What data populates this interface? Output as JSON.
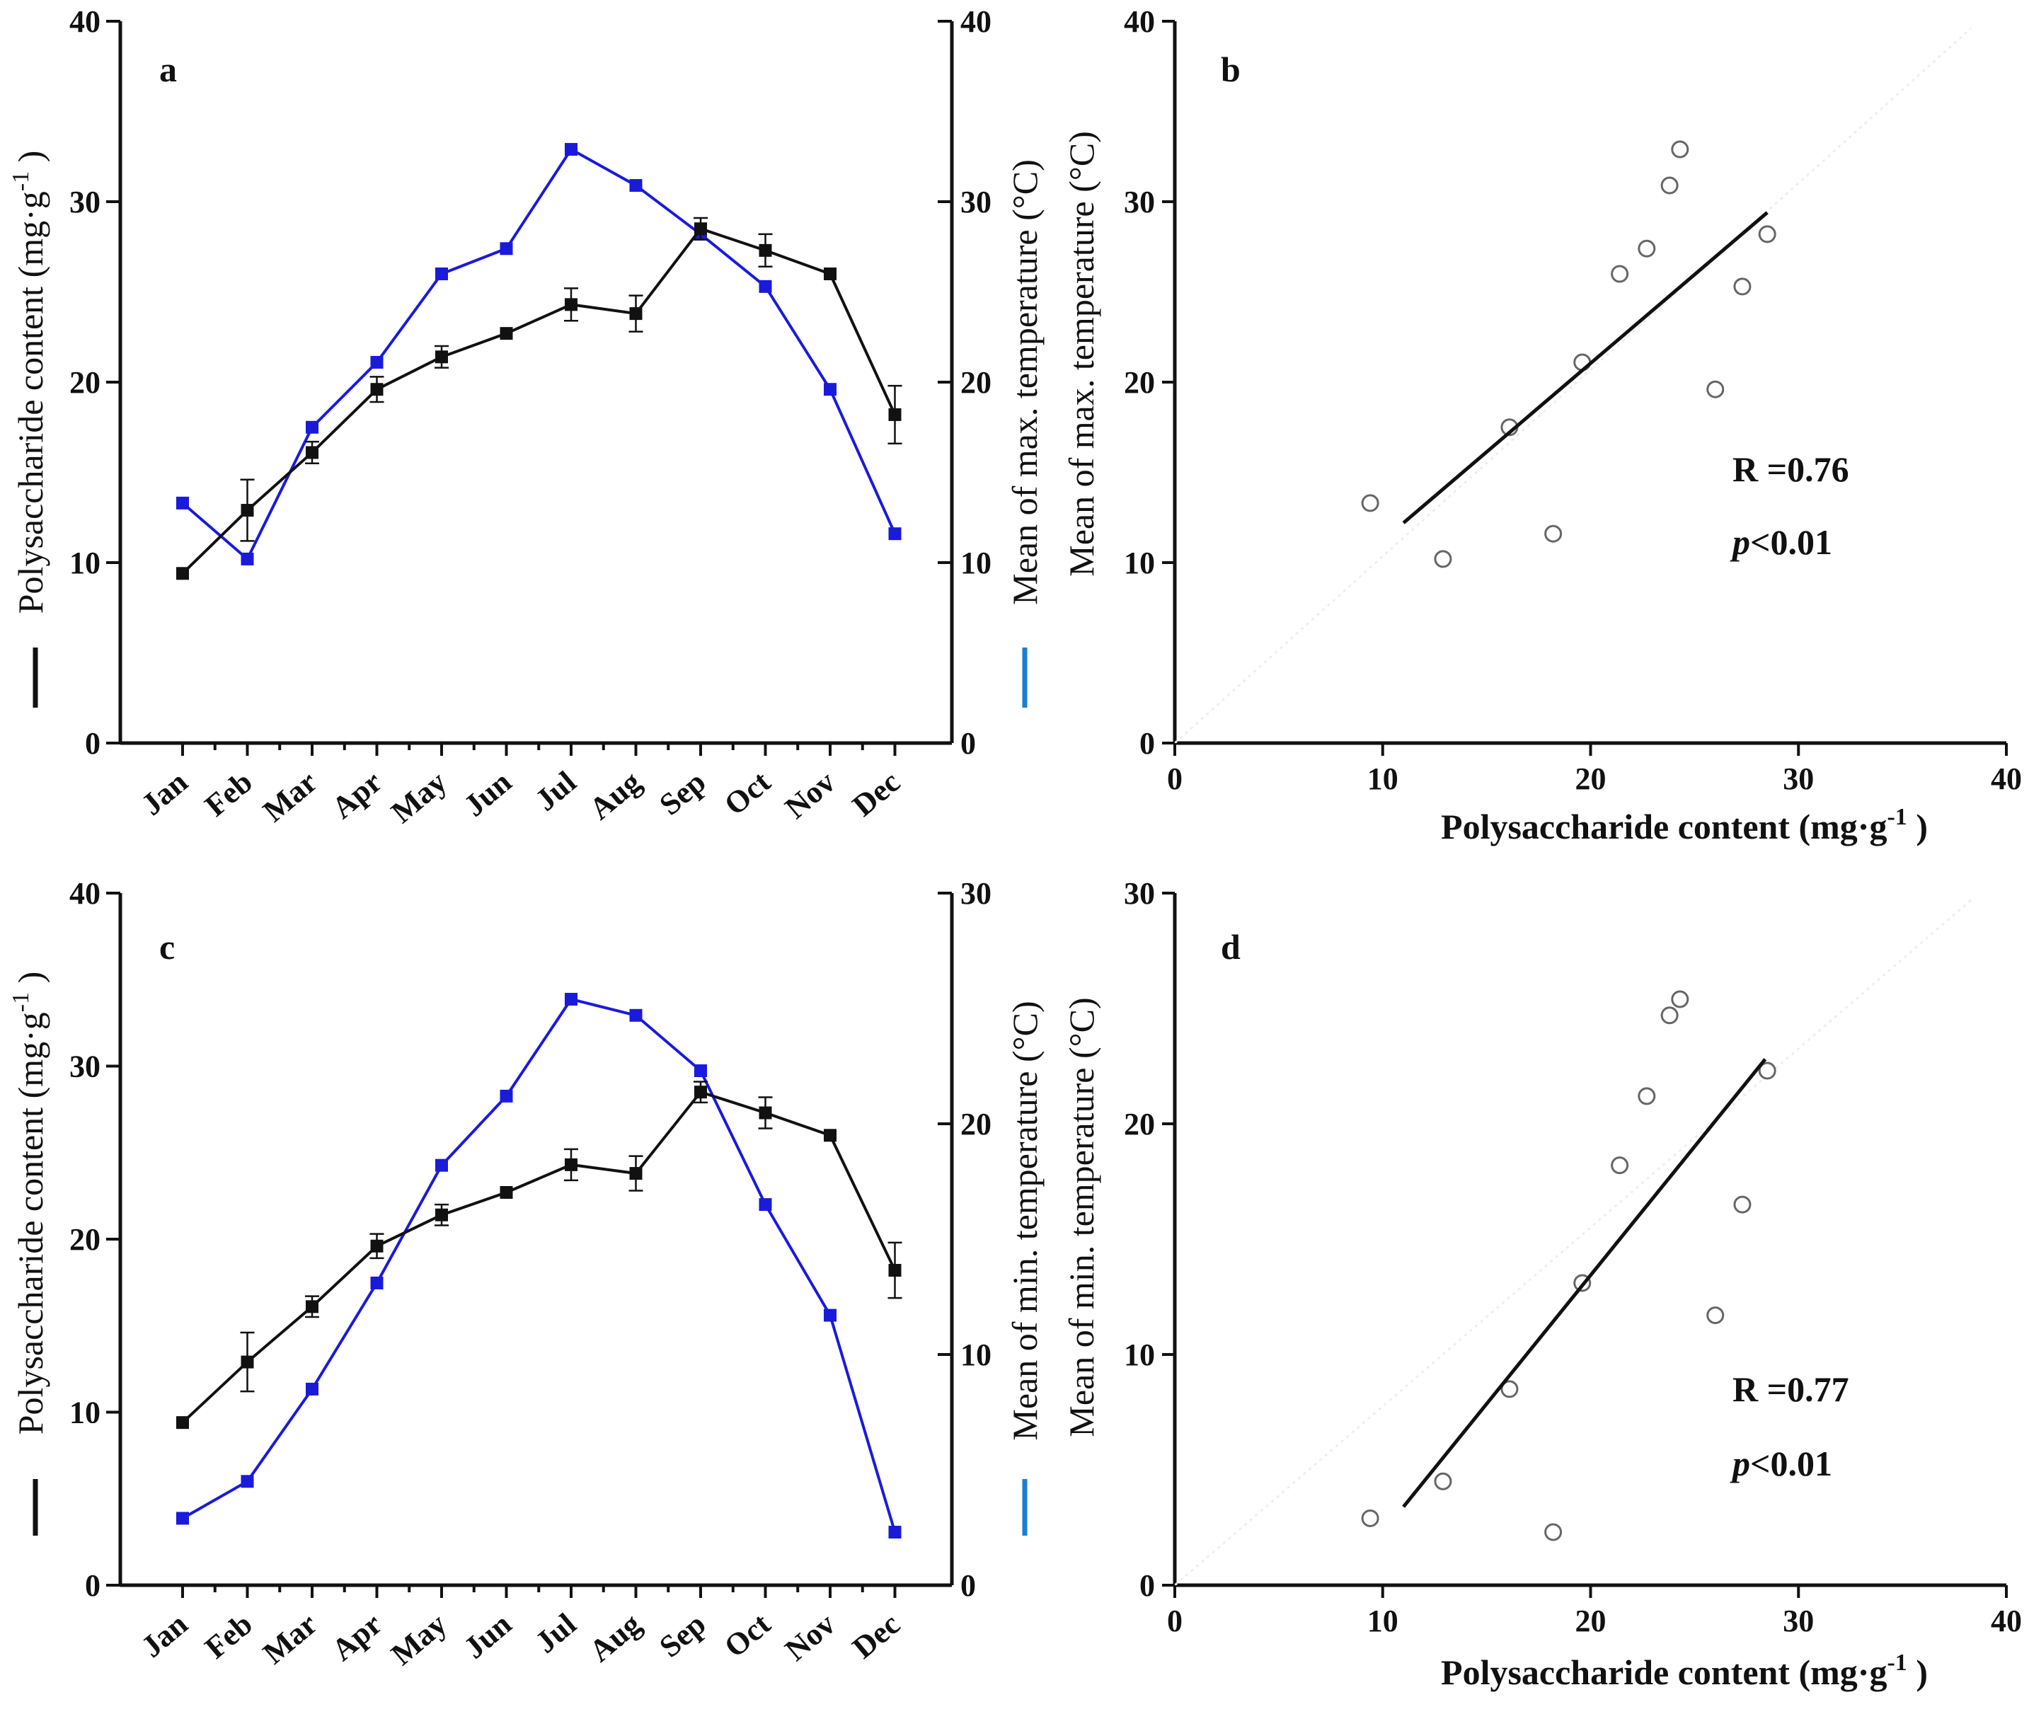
{
  "months": [
    "Jan",
    "Feb",
    "Mar",
    "Apr",
    "May",
    "Jun",
    "Jul",
    "Aug",
    "Sep",
    "Oct",
    "Nov",
    "Dec"
  ],
  "colors": {
    "polysaccharide": "#111111",
    "temperature": "#1a1adb",
    "marker_outline": "#666666",
    "legend_blue": "#1a7fd0"
  },
  "texts": {
    "left_label_main": "Polysaccharide content (mg·g",
    "sup": "-1",
    "close_paren": " )",
    "right_label_max": "Mean of max. temperature (°C)",
    "right_label_min": "Mean of min. temperature (°C)",
    "x_label_scatter_main": "Polysaccharide content (mg·g",
    "y_label_b": "Mean of max. temperature (°C)",
    "y_label_d": "Mean of min. temperature (°C)"
  },
  "chart_data": [
    {
      "id": "a",
      "type": "line",
      "panel_label": "a",
      "categories": [
        "Jan",
        "Feb",
        "Mar",
        "Apr",
        "May",
        "Jun",
        "Jul",
        "Aug",
        "Sep",
        "Oct",
        "Nov",
        "Dec"
      ],
      "series": [
        {
          "name": "Polysaccharide content",
          "axis": "left",
          "values": [
            9.4,
            12.9,
            16.1,
            19.6,
            21.4,
            22.7,
            24.3,
            23.8,
            28.5,
            27.3,
            26.0,
            18.2
          ],
          "errors": [
            0.3,
            1.7,
            0.6,
            0.7,
            0.6,
            0.3,
            0.9,
            1.0,
            0.6,
            0.9,
            0.3,
            1.6
          ]
        },
        {
          "name": "Mean of max. temperature",
          "axis": "right",
          "values": [
            13.3,
            10.2,
            17.5,
            21.1,
            26.0,
            27.4,
            32.9,
            30.9,
            28.2,
            25.3,
            19.6,
            11.6
          ]
        }
      ],
      "ylim_left": [
        0,
        40
      ],
      "yticks_left": [
        0,
        10,
        20,
        30,
        40
      ],
      "ylim_right": [
        0,
        40
      ],
      "yticks_right": [
        0,
        10,
        20,
        30,
        40
      ],
      "ylabel_left": "Polysaccharide content (mg·g-1)",
      "ylabel_right": "Mean of max. temperature (°C)"
    },
    {
      "id": "b",
      "type": "scatter",
      "panel_label": "b",
      "points_x": [
        9.4,
        12.9,
        16.1,
        19.6,
        21.4,
        22.7,
        24.3,
        23.8,
        28.5,
        27.3,
        26.0,
        18.2
      ],
      "points_y": [
        13.3,
        10.2,
        17.5,
        21.1,
        26.0,
        27.4,
        32.9,
        30.9,
        28.2,
        25.3,
        19.6,
        11.6
      ],
      "fit_line": {
        "x": [
          11,
          28.5
        ],
        "y": [
          12.2,
          29.4
        ]
      },
      "xlim": [
        0,
        40
      ],
      "xticks": [
        0,
        10,
        20,
        30,
        40
      ],
      "ylim": [
        0,
        40
      ],
      "yticks": [
        0,
        10,
        20,
        30,
        40
      ],
      "xlabel": "Polysaccharide content (mg·g-1)",
      "ylabel": "Mean of max. temperature (°C)",
      "r_text": "R =0.76",
      "p_italic": "p",
      "p_rest": "<0.01"
    },
    {
      "id": "c",
      "type": "line",
      "panel_label": "c",
      "categories": [
        "Jan",
        "Feb",
        "Mar",
        "Apr",
        "May",
        "Jun",
        "Jul",
        "Aug",
        "Sep",
        "Oct",
        "Nov",
        "Dec"
      ],
      "series": [
        {
          "name": "Polysaccharide content",
          "axis": "left",
          "values": [
            9.4,
            12.9,
            16.1,
            19.6,
            21.4,
            22.7,
            24.3,
            23.8,
            28.5,
            27.3,
            26.0,
            18.2
          ],
          "errors": [
            0.3,
            1.7,
            0.6,
            0.7,
            0.6,
            0.3,
            0.9,
            1.0,
            0.6,
            0.9,
            0.3,
            1.6
          ]
        },
        {
          "name": "Mean of min. temperature",
          "axis": "right",
          "values": [
            2.9,
            4.5,
            8.5,
            13.1,
            18.2,
            21.2,
            25.4,
            24.7,
            22.3,
            16.5,
            11.7,
            2.3
          ]
        }
      ],
      "ylim_left": [
        0,
        40
      ],
      "yticks_left": [
        0,
        10,
        20,
        30,
        40
      ],
      "ylim_right": [
        0,
        30
      ],
      "yticks_right": [
        0,
        10,
        20,
        30
      ],
      "ylabel_left": "Polysaccharide content (mg·g-1)",
      "ylabel_right": "Mean of min. temperature (°C)"
    },
    {
      "id": "d",
      "type": "scatter",
      "panel_label": "d",
      "points_x": [
        9.4,
        12.9,
        16.1,
        19.6,
        21.4,
        22.7,
        24.3,
        23.8,
        28.5,
        27.3,
        26.0,
        18.2
      ],
      "points_y": [
        2.9,
        4.5,
        8.5,
        13.1,
        18.2,
        21.2,
        25.4,
        24.7,
        22.3,
        16.5,
        11.7,
        2.3
      ],
      "fit_line": {
        "x": [
          11,
          28.4
        ],
        "y": [
          3.4,
          22.8
        ]
      },
      "xlim": [
        0,
        40
      ],
      "xticks": [
        0,
        10,
        20,
        30,
        40
      ],
      "ylim": [
        0,
        30
      ],
      "yticks": [
        0,
        10,
        20,
        30
      ],
      "xlabel": "Polysaccharide content (mg·g-1)",
      "ylabel": "Mean of min. temperature (°C)",
      "r_text": "R =0.77",
      "p_italic": "p",
      "p_rest": "<0.01"
    }
  ]
}
